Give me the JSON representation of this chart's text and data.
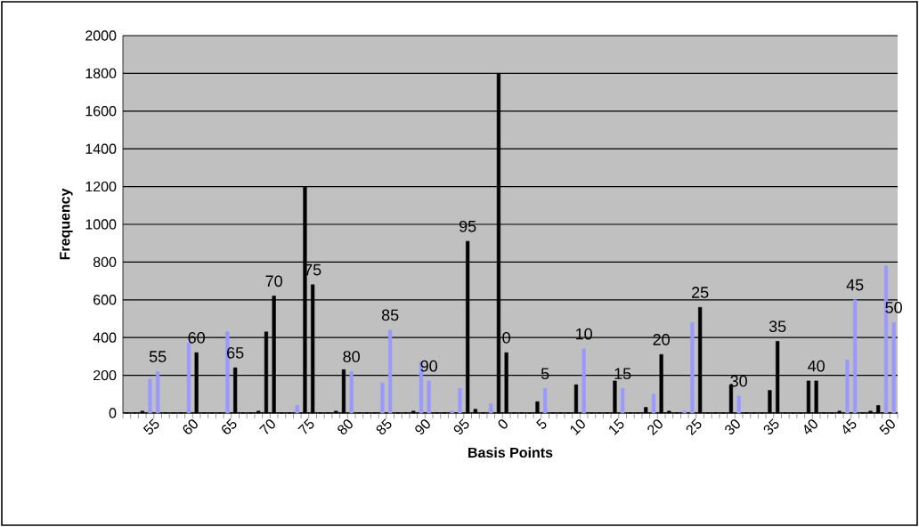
{
  "chart_data": {
    "type": "bar",
    "xlabel": "Basis Points",
    "ylabel": "Frequency",
    "categories": [
      null,
      null,
      null,
      null,
      "55",
      null,
      null,
      null,
      null,
      "60",
      null,
      null,
      null,
      null,
      "65",
      null,
      null,
      null,
      null,
      "70",
      null,
      null,
      null,
      null,
      "75",
      null,
      null,
      null,
      null,
      "80",
      null,
      null,
      null,
      null,
      "85",
      null,
      null,
      null,
      null,
      "90",
      null,
      null,
      null,
      null,
      "95",
      null,
      null,
      null,
      null,
      "0",
      null,
      null,
      null,
      null,
      "5",
      null,
      null,
      null,
      null,
      "10",
      null,
      null,
      null,
      null,
      "15",
      null,
      null,
      null,
      null,
      "20",
      null,
      null,
      null,
      null,
      "25",
      null,
      null,
      null,
      null,
      "30",
      null,
      null,
      null,
      null,
      "35",
      null,
      null,
      null,
      null,
      "40",
      null,
      null,
      null,
      null,
      "45",
      null,
      null,
      null,
      null,
      "50"
    ],
    "values": [
      0,
      0,
      10,
      180,
      220,
      0,
      0,
      0,
      370,
      320,
      0,
      0,
      0,
      430,
      240,
      0,
      0,
      10,
      430,
      620,
      0,
      0,
      40,
      1200,
      680,
      0,
      0,
      10,
      230,
      220,
      0,
      0,
      0,
      160,
      440,
      0,
      0,
      10,
      270,
      170,
      0,
      0,
      10,
      130,
      910,
      20,
      0,
      50,
      1800,
      320,
      0,
      0,
      0,
      60,
      130,
      0,
      0,
      0,
      150,
      340,
      0,
      0,
      0,
      170,
      130,
      0,
      0,
      30,
      100,
      310,
      10,
      0,
      10,
      480,
      560,
      0,
      0,
      0,
      150,
      90,
      0,
      0,
      0,
      120,
      380,
      0,
      0,
      0,
      170,
      170,
      0,
      0,
      10,
      280,
      600,
      0,
      10,
      40,
      780,
      480
    ],
    "colors": [
      "#000000",
      "#000000",
      "#000000",
      "#9999ff",
      "#9999ff",
      "#000000",
      "#000000",
      "#000000",
      "#9999ff",
      "#000000",
      "#000000",
      "#000000",
      "#000000",
      "#9999ff",
      "#000000",
      "#000000",
      "#000000",
      "#000000",
      "#000000",
      "#000000",
      "#000000",
      "#000000",
      "#9999ff",
      "#000000",
      "#000000",
      "#000000",
      "#000000",
      "#000000",
      "#000000",
      "#9999ff",
      "#000000",
      "#000000",
      "#000000",
      "#9999ff",
      "#9999ff",
      "#000000",
      "#000000",
      "#000000",
      "#9999ff",
      "#9999ff",
      "#000000",
      "#000000",
      "#9999ff",
      "#9999ff",
      "#000000",
      "#000000",
      "#000000",
      "#9999ff",
      "#000000",
      "#000000",
      "#000000",
      "#000000",
      "#000000",
      "#000000",
      "#9999ff",
      "#000000",
      "#000000",
      "#000000",
      "#000000",
      "#9999ff",
      "#000000",
      "#000000",
      "#000000",
      "#000000",
      "#9999ff",
      "#000000",
      "#000000",
      "#000000",
      "#9999ff",
      "#000000",
      "#000000",
      "#000000",
      "#9999ff",
      "#9999ff",
      "#000000",
      "#000000",
      "#000000",
      "#000000",
      "#000000",
      "#9999ff",
      "#000000",
      "#000000",
      "#000000",
      "#000000",
      "#000000",
      "#000000",
      "#000000",
      "#000000",
      "#000000",
      "#000000",
      "#000000",
      "#000000",
      "#000000",
      "#9999ff",
      "#9999ff",
      "#000000",
      "#000000",
      "#000000",
      "#9999ff",
      "#9999ff"
    ],
    "ylim": [
      0,
      2000
    ],
    "yticks": [
      0,
      200,
      400,
      600,
      800,
      1000,
      1200,
      1400,
      1600,
      1800,
      2000
    ],
    "grid": "y",
    "annotations": [
      {
        "text": "55",
        "x": "55",
        "y": 220
      },
      {
        "text": "60",
        "x": "60",
        "y": 320
      },
      {
        "text": "65",
        "x": "65",
        "y": 240
      },
      {
        "text": "70",
        "x": "70",
        "y": 620
      },
      {
        "text": "75",
        "x": "75",
        "y": 680
      },
      {
        "text": "80",
        "x": "80",
        "y": 220
      },
      {
        "text": "85",
        "x": "85",
        "y": 440
      },
      {
        "text": "90",
        "x": "90",
        "y": 170
      },
      {
        "text": "95",
        "x": "95",
        "y": 910
      },
      {
        "text": "0",
        "x": "0",
        "y": 320
      },
      {
        "text": "5",
        "x": "5",
        "y": 130
      },
      {
        "text": "10",
        "x": "10",
        "y": 340
      },
      {
        "text": "15",
        "x": "15",
        "y": 130
      },
      {
        "text": "20",
        "x": "20",
        "y": 310
      },
      {
        "text": "25",
        "x": "25",
        "y": 560
      },
      {
        "text": "30",
        "x": "30",
        "y": 90
      },
      {
        "text": "35",
        "x": "35",
        "y": 380
      },
      {
        "text": "40",
        "x": "40",
        "y": 170
      },
      {
        "text": "45",
        "x": "45",
        "y": 600
      },
      {
        "text": "50",
        "x": "50",
        "y": 480
      }
    ]
  }
}
